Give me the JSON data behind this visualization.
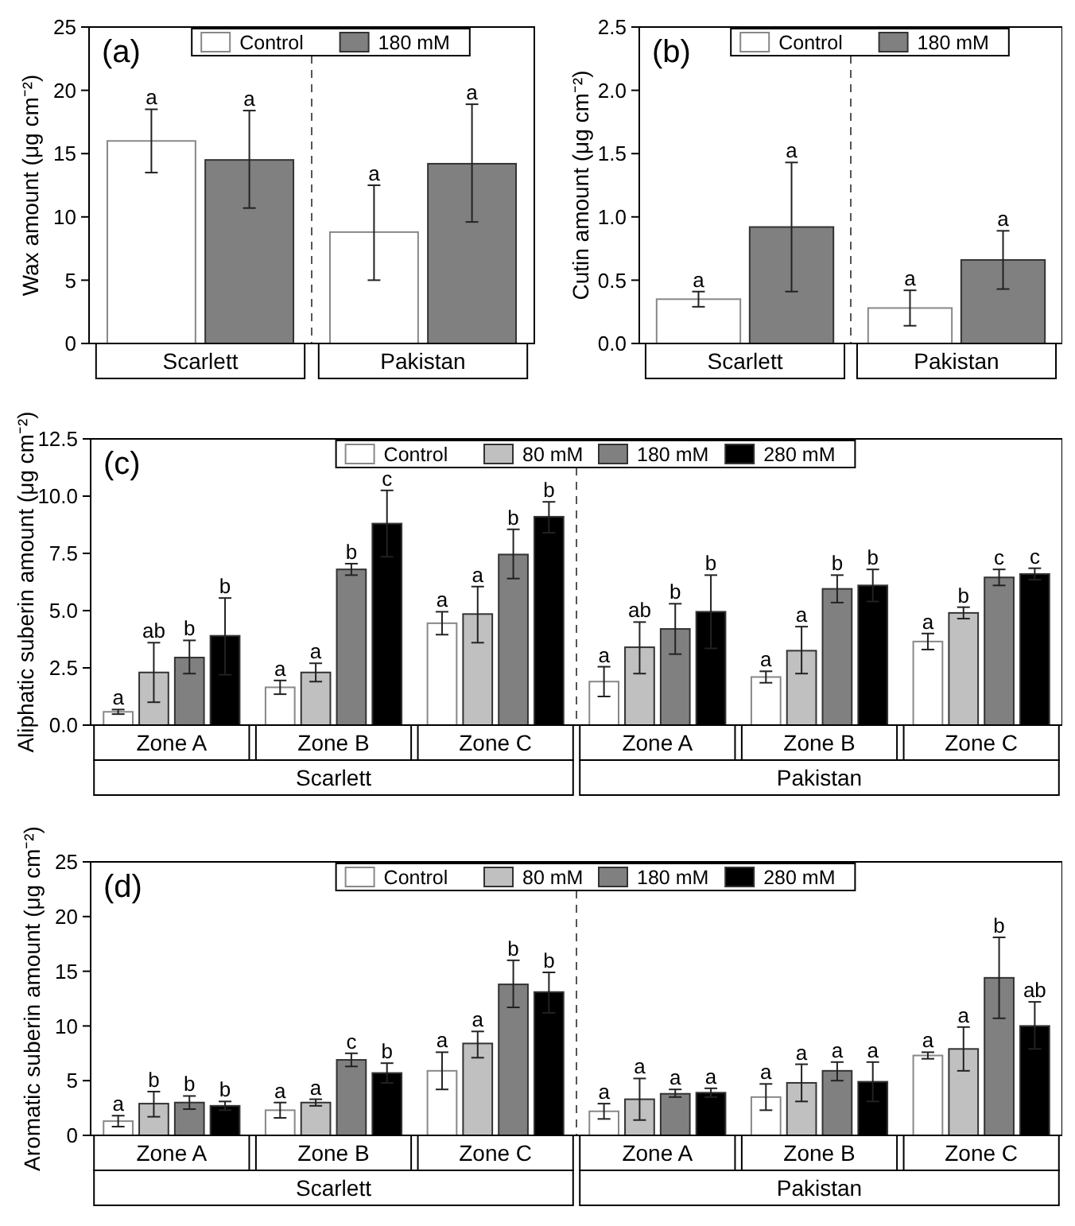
{
  "chart_data": [
    {
      "type": "bar",
      "title": "(a)",
      "ylabel": "Wax amount (μg cm⁻²)",
      "categories": [
        "Scarlett",
        "Pakistan"
      ],
      "ylim": [
        0,
        25
      ],
      "yticks": [
        0,
        5,
        10,
        15,
        20,
        25
      ],
      "legend": "top",
      "series": [
        {
          "name": "Control",
          "color": "#ffffff",
          "values": [
            16.0,
            8.8
          ],
          "errors": [
            [
              13.5,
              18.5
            ],
            [
              5.0,
              12.5
            ]
          ],
          "value_labels": [
            "a",
            "a"
          ]
        },
        {
          "name": "180 mM",
          "color": "#808080",
          "values": [
            14.5,
            14.2
          ],
          "errors": [
            [
              10.7,
              18.4
            ],
            [
              9.6,
              18.9
            ]
          ],
          "value_labels": [
            "a",
            "a"
          ]
        }
      ]
    },
    {
      "type": "bar",
      "title": "(b)",
      "ylabel": "Cutin amount (μg cm⁻²)",
      "categories": [
        "Scarlett",
        "Pakistan"
      ],
      "ylim": [
        0,
        2.5
      ],
      "yticks": [
        {
          "value": 0,
          "label": "0.0"
        },
        0.5,
        {
          "value": 1,
          "label": "1.0"
        },
        1.5,
        {
          "value": 2,
          "label": "2.0"
        },
        2.5
      ],
      "legend": "top",
      "series": [
        {
          "name": "Control",
          "color": "#ffffff",
          "values": [
            0.35,
            0.28
          ],
          "errors": [
            [
              0.29,
              0.41
            ],
            [
              0.14,
              0.42
            ]
          ],
          "value_labels": [
            "a",
            "a"
          ]
        },
        {
          "name": "180 mM",
          "color": "#808080",
          "values": [
            0.92,
            0.66
          ],
          "errors": [
            [
              0.41,
              1.43
            ],
            [
              0.43,
              0.89
            ]
          ],
          "value_labels": [
            "a",
            "a"
          ]
        }
      ]
    },
    {
      "type": "bar",
      "title": "(c)",
      "ylabel": "Aliphatic suberin amount (μg cm⁻²)",
      "categories": [
        "Zone A",
        "Zone B",
        "Zone C",
        "Zone A",
        "Zone B",
        "Zone C"
      ],
      "annotations": [
        "Scarlett",
        "Pakistan"
      ],
      "ylim": [
        0,
        12.5
      ],
      "yticks": [
        {
          "value": 0,
          "label": "0.0"
        },
        2.5,
        {
          "value": 5,
          "label": "5.0"
        },
        7.5,
        {
          "value": 10,
          "label": "10.0"
        },
        12.5
      ],
      "legend": "top",
      "series": [
        {
          "name": "Control",
          "color": "#ffffff",
          "values": [
            0.58,
            1.65,
            4.45,
            1.9,
            2.1,
            3.65
          ],
          "errors": [
            [
              0.48,
              0.68
            ],
            [
              1.35,
              1.95
            ],
            [
              3.95,
              4.95
            ],
            [
              1.25,
              2.55
            ],
            [
              1.85,
              2.35
            ],
            [
              3.3,
              4.0
            ]
          ],
          "value_labels": [
            "a",
            "a",
            "a",
            "a",
            "a",
            "a"
          ]
        },
        {
          "name": "80 mM",
          "color": "#c0c0c0",
          "values": [
            2.3,
            2.3,
            4.85,
            3.4,
            3.25,
            4.9
          ],
          "errors": [
            [
              1.0,
              3.6
            ],
            [
              1.9,
              2.7
            ],
            [
              3.6,
              6.05
            ],
            [
              2.25,
              4.5
            ],
            [
              2.25,
              4.3
            ],
            [
              4.65,
              5.15
            ]
          ],
          "value_labels": [
            "ab",
            "a",
            "a",
            "ab",
            "a",
            "b"
          ]
        },
        {
          "name": "180 mM",
          "color": "#808080",
          "values": [
            2.95,
            6.8,
            7.45,
            4.2,
            5.95,
            6.45
          ],
          "errors": [
            [
              2.25,
              3.7
            ],
            [
              6.55,
              7.05
            ],
            [
              6.4,
              8.55
            ],
            [
              3.1,
              5.3
            ],
            [
              5.35,
              6.55
            ],
            [
              6.1,
              6.8
            ]
          ],
          "value_labels": [
            "b",
            "b",
            "b",
            "b",
            "b",
            "c"
          ]
        },
        {
          "name": "280 mM",
          "color": "#000000",
          "values": [
            3.9,
            8.8,
            9.1,
            4.95,
            6.1,
            6.6
          ],
          "errors": [
            [
              2.2,
              5.55
            ],
            [
              7.35,
              10.25
            ],
            [
              8.4,
              9.75
            ],
            [
              3.35,
              6.55
            ],
            [
              5.4,
              6.8
            ],
            [
              6.35,
              6.85
            ]
          ],
          "value_labels": [
            "b",
            "c",
            "b",
            "b",
            "b",
            "c"
          ]
        }
      ]
    },
    {
      "type": "bar",
      "title": "(d)",
      "ylabel": "Aromatic suberin amount (μg cm⁻²)",
      "categories": [
        "Zone A",
        "Zone B",
        "Zone C",
        "Zone A",
        "Zone B",
        "Zone C"
      ],
      "annotations": [
        "Scarlett",
        "Pakistan"
      ],
      "ylim": [
        0,
        25
      ],
      "yticks": [
        0,
        5,
        10,
        15,
        20,
        25
      ],
      "legend": "top",
      "series": [
        {
          "name": "Control",
          "color": "#ffffff",
          "values": [
            1.3,
            2.3,
            5.9,
            2.2,
            3.5,
            7.3
          ],
          "errors": [
            [
              0.8,
              1.8
            ],
            [
              1.6,
              3.0
            ],
            [
              4.2,
              7.6
            ],
            [
              1.5,
              2.9
            ],
            [
              2.3,
              4.7
            ],
            [
              7.0,
              7.6
            ]
          ],
          "value_labels": [
            "a",
            "a",
            "a",
            "a",
            "a",
            "a"
          ]
        },
        {
          "name": "80 mM",
          "color": "#c0c0c0",
          "values": [
            2.9,
            3.0,
            8.4,
            3.3,
            4.8,
            7.9
          ],
          "errors": [
            [
              1.7,
              4.0
            ],
            [
              2.7,
              3.3
            ],
            [
              7.1,
              9.5
            ],
            [
              1.4,
              5.2
            ],
            [
              3.1,
              6.5
            ],
            [
              5.9,
              9.9
            ]
          ],
          "value_labels": [
            "b",
            "a",
            "a",
            "a",
            "a",
            "a"
          ]
        },
        {
          "name": "180 mM",
          "color": "#808080",
          "values": [
            3.0,
            6.9,
            13.8,
            3.8,
            5.9,
            14.4
          ],
          "errors": [
            [
              2.4,
              3.6
            ],
            [
              6.3,
              7.5
            ],
            [
              11.7,
              16.0
            ],
            [
              3.5,
              4.2
            ],
            [
              5.0,
              6.7
            ],
            [
              10.7,
              18.1
            ]
          ],
          "value_labels": [
            "b",
            "c",
            "b",
            "a",
            "a",
            "b"
          ]
        },
        {
          "name": "280 mM",
          "color": "#000000",
          "values": [
            2.7,
            5.7,
            13.1,
            3.9,
            4.9,
            10.0
          ],
          "errors": [
            [
              2.3,
              3.1
            ],
            [
              4.8,
              6.6
            ],
            [
              11.2,
              14.9
            ],
            [
              3.5,
              4.3
            ],
            [
              3.1,
              6.7
            ],
            [
              7.9,
              12.2
            ]
          ],
          "value_labels": [
            "b",
            "b",
            "b",
            "a",
            "a",
            "ab"
          ]
        }
      ]
    }
  ]
}
